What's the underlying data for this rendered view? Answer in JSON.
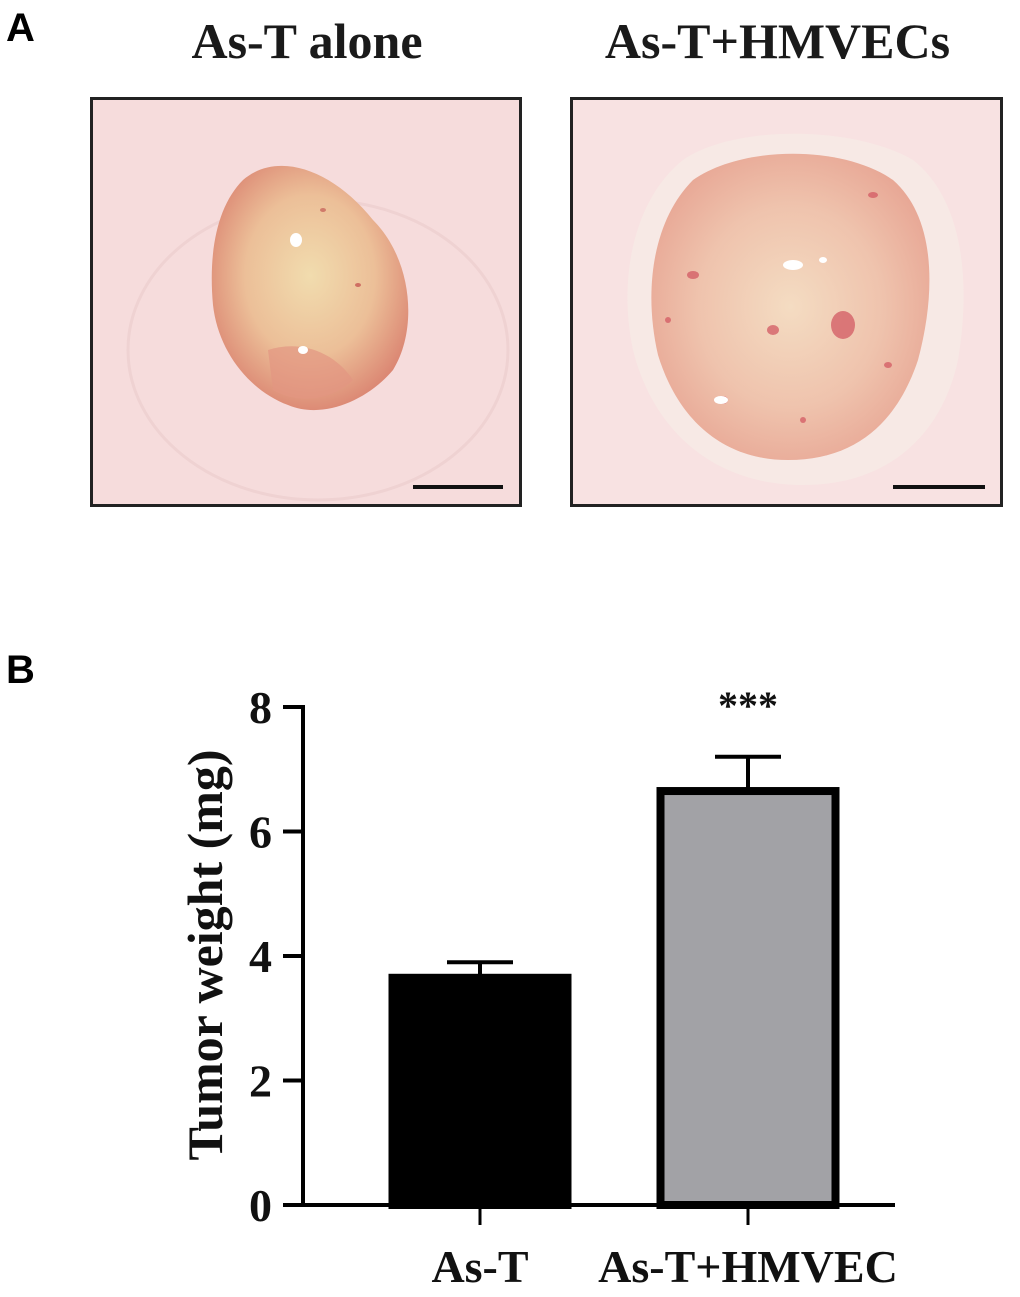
{
  "panel_a": {
    "letter": "A",
    "photos": [
      {
        "title": "As-T alone",
        "tissue_color": "#e9a48f",
        "core_color": "#efd3a8"
      },
      {
        "title": "As-T+HMVECs",
        "tissue_color": "#ecb9a7",
        "core_color": "#f1d9bd"
      }
    ],
    "background_color": "#f6dcdc"
  },
  "panel_b": {
    "letter": "B"
  },
  "chart_data": {
    "type": "bar",
    "categories": [
      "As-T",
      "As-T+HMVEC"
    ],
    "values": [
      3.65,
      6.65
    ],
    "errors": [
      0.25,
      0.55
    ],
    "bar_colors": [
      "#000000",
      "#a2a2a6"
    ],
    "significance": [
      "",
      "***"
    ],
    "ylabel": "Tumor weight (mg)",
    "xlabel": "",
    "ylim": [
      0,
      8
    ],
    "yticks": [
      0,
      2,
      4,
      6,
      8
    ],
    "grid": false
  }
}
